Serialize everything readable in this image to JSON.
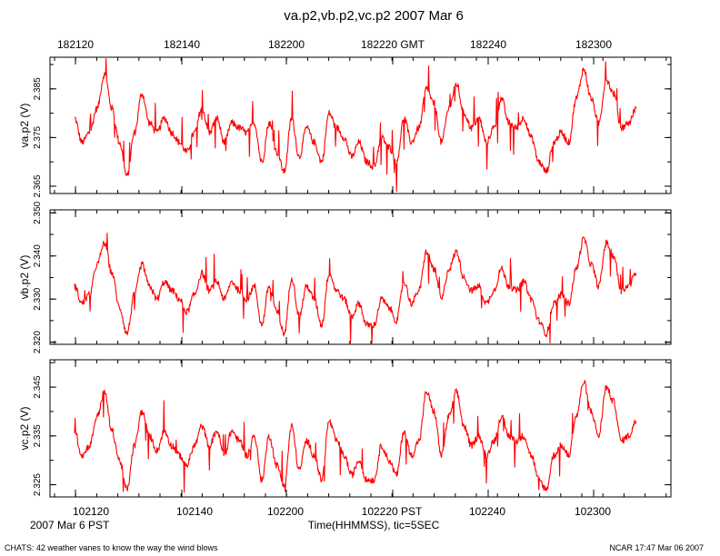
{
  "title": "va.p2,vb.p2,vc.p2 2007 Mar 6",
  "top_axis": {
    "labels": [
      "182120",
      "182140",
      "182200",
      "182220 GMT",
      "182240",
      "182300"
    ]
  },
  "bottom_axis": {
    "labels": [
      "102120",
      "102140",
      "102200",
      "102220 PST",
      "102240",
      "102300"
    ],
    "date_label": "2007 Mar  6 PST",
    "xlabel": "Time(HHMMSS), tic=5SEC"
  },
  "footer": {
    "left": "CHATS: 42 weather vanes to know the way the wind blows",
    "right": "NCAR 17:47 Mar 06 2007"
  },
  "colors": {
    "line": "#ff0000",
    "axis": "#000000"
  },
  "chart_data": [
    {
      "type": "line",
      "name": "va.p2",
      "ylabel": "va.p2  (V)",
      "tick_labels": [
        "2.385",
        "2.375",
        "2.365"
      ],
      "ticks": [
        2.385,
        2.375,
        2.365
      ],
      "ylim": [
        2.3635,
        2.3915
      ],
      "xlim": [
        0,
        380
      ],
      "x": [
        0,
        5,
        10,
        15,
        20,
        25,
        30,
        35,
        40,
        45,
        50,
        55,
        60,
        65,
        70,
        75,
        80,
        85,
        90,
        95,
        100,
        105,
        110,
        115,
        120,
        125,
        130,
        135,
        140,
        145,
        150,
        155,
        160,
        165,
        170,
        175,
        180,
        185,
        190,
        195,
        200,
        205,
        210,
        215,
        220,
        225,
        230,
        235,
        240,
        245,
        250,
        255,
        260,
        265,
        270,
        275,
        280,
        285,
        290,
        295,
        300,
        305,
        310,
        315,
        320,
        325,
        330,
        335,
        340,
        345,
        350,
        355,
        360,
        365,
        370,
        375
      ],
      "values": [
        2.379,
        2.374,
        2.376,
        2.381,
        2.388,
        2.381,
        2.374,
        2.367,
        2.376,
        2.384,
        2.378,
        2.376,
        2.379,
        2.376,
        2.374,
        2.372,
        2.376,
        2.381,
        2.376,
        2.379,
        2.374,
        2.378,
        2.377,
        2.376,
        2.378,
        2.37,
        2.378,
        2.372,
        2.368,
        2.379,
        2.371,
        2.377,
        2.374,
        2.37,
        2.38,
        2.377,
        2.375,
        2.371,
        2.374,
        2.37,
        2.369,
        2.375,
        2.373,
        2.37,
        2.379,
        2.374,
        2.377,
        2.385,
        2.382,
        2.374,
        2.381,
        2.386,
        2.38,
        2.377,
        2.379,
        2.374,
        2.377,
        2.383,
        2.378,
        2.377,
        2.379,
        2.375,
        2.37,
        2.368,
        2.374,
        2.376,
        2.374,
        2.383,
        2.389,
        2.383,
        2.378,
        2.387,
        2.384,
        2.377,
        2.378,
        2.381
      ],
      "series": "line"
    },
    {
      "type": "line",
      "name": "vb.p2",
      "ylabel": "vb.p2  (V)",
      "tick_labels": [
        "2.350",
        "2.340",
        "2.330",
        "2.320"
      ],
      "ticks": [
        2.35,
        2.34,
        2.33,
        2.32
      ],
      "ylim": [
        2.3195,
        2.3507
      ],
      "xlim": [
        0,
        380
      ],
      "x": [
        0,
        5,
        10,
        15,
        20,
        25,
        30,
        35,
        40,
        45,
        50,
        55,
        60,
        65,
        70,
        75,
        80,
        85,
        90,
        95,
        100,
        105,
        110,
        115,
        120,
        125,
        130,
        135,
        140,
        145,
        150,
        155,
        160,
        165,
        170,
        175,
        180,
        185,
        190,
        195,
        200,
        205,
        210,
        215,
        220,
        225,
        230,
        235,
        240,
        245,
        250,
        255,
        260,
        265,
        270,
        275,
        280,
        285,
        290,
        295,
        300,
        305,
        310,
        315,
        320,
        325,
        330,
        335,
        340,
        345,
        350,
        355,
        360,
        365,
        370,
        375
      ],
      "values": [
        2.333,
        2.329,
        2.331,
        2.338,
        2.343,
        2.336,
        2.328,
        2.322,
        2.331,
        2.338,
        2.333,
        2.33,
        2.334,
        2.332,
        2.33,
        2.327,
        2.331,
        2.336,
        2.332,
        2.334,
        2.33,
        2.334,
        2.332,
        2.33,
        2.333,
        2.324,
        2.333,
        2.327,
        2.322,
        2.335,
        2.326,
        2.333,
        2.33,
        2.324,
        2.336,
        2.332,
        2.33,
        2.326,
        2.329,
        2.324,
        2.324,
        2.33,
        2.328,
        2.325,
        2.334,
        2.329,
        2.332,
        2.341,
        2.337,
        2.33,
        2.337,
        2.341,
        2.335,
        2.332,
        2.333,
        2.329,
        2.332,
        2.337,
        2.333,
        2.332,
        2.334,
        2.33,
        2.325,
        2.322,
        2.329,
        2.331,
        2.329,
        2.337,
        2.344,
        2.338,
        2.333,
        2.343,
        2.34,
        2.332,
        2.333,
        2.336
      ],
      "series": "line"
    },
    {
      "type": "line",
      "name": "vc.p2",
      "ylabel": "vc.p2  (V)",
      "tick_labels": [
        "2.345",
        "2.335",
        "2.325"
      ],
      "ticks": [
        2.345,
        2.335,
        2.325
      ],
      "ylim": [
        2.3225,
        2.3506
      ],
      "xlim": [
        0,
        380
      ],
      "x": [
        0,
        5,
        10,
        15,
        20,
        25,
        30,
        35,
        40,
        45,
        50,
        55,
        60,
        65,
        70,
        75,
        80,
        85,
        90,
        95,
        100,
        105,
        110,
        115,
        120,
        125,
        130,
        135,
        140,
        145,
        150,
        155,
        160,
        165,
        170,
        175,
        180,
        185,
        190,
        195,
        200,
        205,
        210,
        215,
        220,
        225,
        230,
        235,
        240,
        245,
        250,
        255,
        260,
        265,
        270,
        275,
        280,
        285,
        290,
        295,
        300,
        305,
        310,
        315,
        320,
        325,
        330,
        335,
        340,
        345,
        350,
        355,
        360,
        365,
        370,
        375
      ],
      "values": [
        2.336,
        2.331,
        2.333,
        2.339,
        2.344,
        2.336,
        2.33,
        2.324,
        2.333,
        2.34,
        2.335,
        2.332,
        2.336,
        2.333,
        2.331,
        2.329,
        2.333,
        2.337,
        2.333,
        2.336,
        2.331,
        2.336,
        2.334,
        2.331,
        2.335,
        2.326,
        2.335,
        2.329,
        2.325,
        2.337,
        2.328,
        2.334,
        2.331,
        2.326,
        2.338,
        2.334,
        2.331,
        2.327,
        2.33,
        2.326,
        2.326,
        2.333,
        2.33,
        2.327,
        2.336,
        2.331,
        2.334,
        2.344,
        2.34,
        2.331,
        2.339,
        2.344,
        2.337,
        2.333,
        2.335,
        2.331,
        2.334,
        2.339,
        2.335,
        2.334,
        2.335,
        2.331,
        2.326,
        2.324,
        2.331,
        2.333,
        2.331,
        2.339,
        2.346,
        2.34,
        2.335,
        2.345,
        2.342,
        2.334,
        2.335,
        2.338
      ],
      "series": "line"
    }
  ]
}
